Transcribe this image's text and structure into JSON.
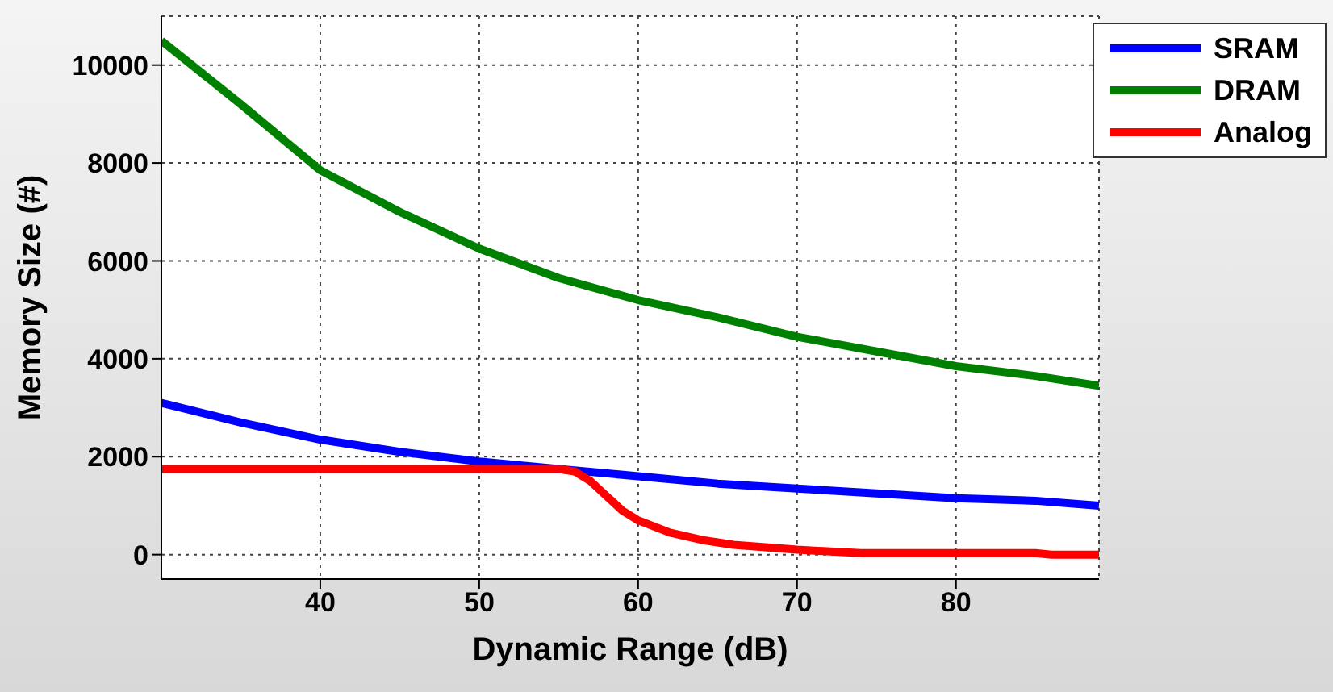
{
  "chart_data": {
    "type": "line",
    "xlabel": "Dynamic Range (dB)",
    "ylabel": "Memory Size (#)",
    "xlim": [
      30,
      89
    ],
    "xticks": [
      40,
      50,
      60,
      70,
      80
    ],
    "ylim": [
      -500,
      11000
    ],
    "yticks": [
      0,
      2000,
      4000,
      6000,
      8000,
      10000
    ],
    "grid": true,
    "legend": "top right",
    "marker": "none",
    "line_style": "solid",
    "series": [
      {
        "name": "SRAM",
        "color": "#0000ff",
        "x": [
          30,
          35,
          40,
          45,
          50,
          55,
          60,
          65,
          70,
          75,
          80,
          85,
          89
        ],
        "values": [
          3100,
          2700,
          2350,
          2100,
          1900,
          1750,
          1600,
          1450,
          1350,
          1250,
          1150,
          1100,
          1000
        ]
      },
      {
        "name": "DRAM",
        "color": "#008000",
        "x": [
          30,
          35,
          40,
          45,
          50,
          55,
          60,
          65,
          70,
          75,
          80,
          85,
          89
        ],
        "values": [
          10500,
          9200,
          7850,
          7000,
          6250,
          5650,
          5200,
          4850,
          4450,
          4150,
          3850,
          3650,
          3450
        ]
      },
      {
        "name": "Analog",
        "color": "#ff0000",
        "x": [
          30,
          40,
          50,
          55,
          56,
          57,
          58,
          59,
          60,
          62,
          64,
          66,
          70,
          74,
          85,
          86,
          89
        ],
        "values": [
          1750,
          1750,
          1750,
          1750,
          1700,
          1500,
          1200,
          900,
          700,
          450,
          300,
          200,
          100,
          30,
          30,
          0,
          0
        ]
      }
    ]
  }
}
